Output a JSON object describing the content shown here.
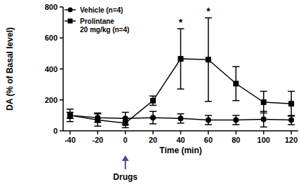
{
  "chart_data": {
    "type": "line",
    "x_label": "Time (min)",
    "y_label": "DA (% of Basal level)",
    "x": [
      -40,
      -20,
      0,
      20,
      40,
      60,
      80,
      100,
      120
    ],
    "xlim": [
      -45,
      125
    ],
    "xticks": [
      -40,
      -20,
      0,
      20,
      40,
      60,
      80,
      100,
      120
    ],
    "ylim": [
      0,
      800
    ],
    "yticks": [
      0,
      200,
      400,
      600,
      800
    ],
    "grid": false,
    "legend": "upper left",
    "series": [
      {
        "name": "Vehicle (n=4)",
        "color": "#000000",
        "marker": "circle",
        "line_style": "solid",
        "values": [
          100,
          85,
          80,
          85,
          80,
          70,
          70,
          75,
          70
        ],
        "errors": [
          20,
          30,
          40,
          40,
          30,
          30,
          30,
          50,
          30
        ]
      },
      {
        "name": "Prolintane 20 mg/kg (n=4)",
        "color": "#000000",
        "marker": "square",
        "line_style": "solid",
        "values": [
          100,
          70,
          50,
          195,
          465,
          460,
          305,
          185,
          175
        ],
        "errors": [
          40,
          40,
          30,
          30,
          195,
          270,
          110,
          70,
          80
        ]
      }
    ],
    "annotations": [
      {
        "x": 40,
        "y": 680,
        "text": "*"
      },
      {
        "x": 60,
        "y": 750,
        "text": "*"
      }
    ],
    "event_marker": {
      "x": 0,
      "text": "Drugs"
    }
  }
}
